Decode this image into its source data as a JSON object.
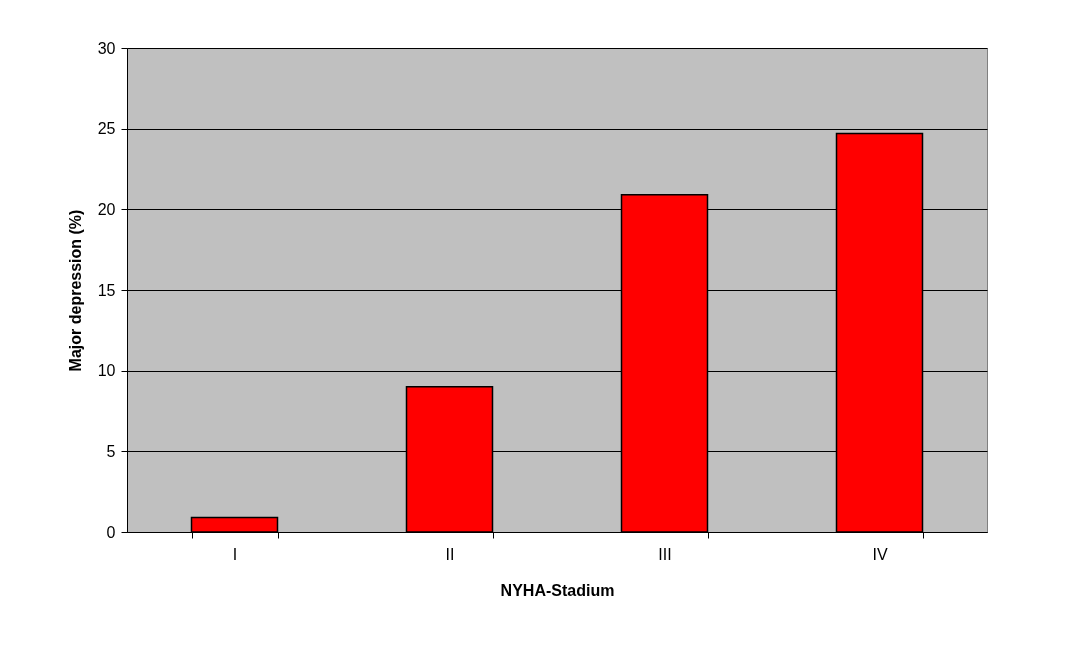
{
  "chart_data": {
    "type": "bar",
    "xlabel": "NYHA-Stadium",
    "ylabel": "Major depression (%)",
    "categories": [
      "I",
      "II",
      "III",
      "IV"
    ],
    "values": [
      0.9,
      9.0,
      20.9,
      24.7
    ],
    "color": "#ff0000",
    "ylim": [
      0,
      30
    ],
    "yticks": [
      0,
      5,
      10,
      15,
      20,
      25,
      30
    ],
    "grid": "y"
  }
}
